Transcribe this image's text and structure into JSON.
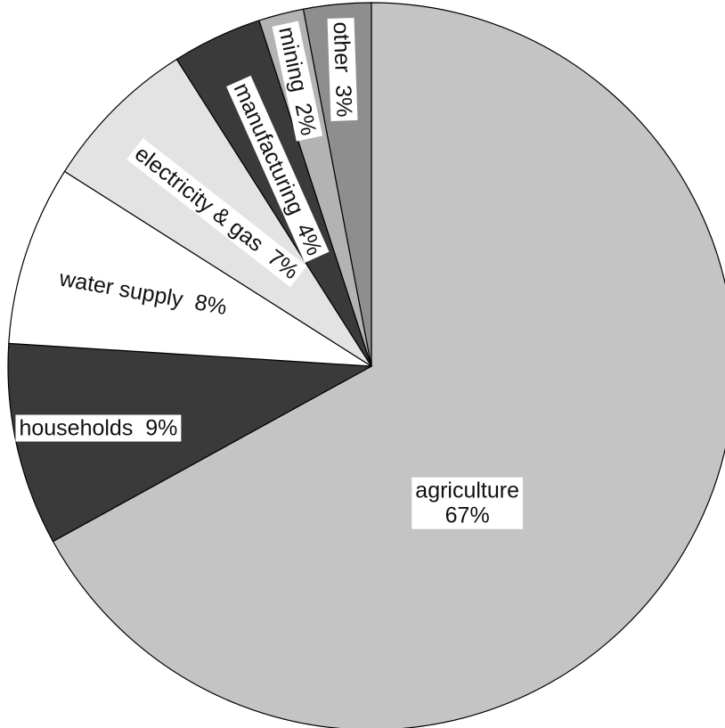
{
  "chart_data": {
    "type": "pie",
    "title": "",
    "start_angle_deg": 0,
    "direction": "clockwise",
    "slices": [
      {
        "label": "agriculture",
        "value": 67,
        "text": "67%",
        "color": "#c4c4c4"
      },
      {
        "label": "households",
        "value": 9,
        "text": "9%",
        "color": "#3a3a3a"
      },
      {
        "label": "water supply",
        "value": 8,
        "text": "8%",
        "color": "#ffffff"
      },
      {
        "label": "electricity & gas",
        "value": 7,
        "text": "7%",
        "color": "#e3e3e3"
      },
      {
        "label": "manufacturing",
        "value": 4,
        "text": "4%",
        "color": "#3a3a3a"
      },
      {
        "label": "mining",
        "value": 2,
        "text": "2%",
        "color": "#b3b3b3"
      },
      {
        "label": "other",
        "value": 3,
        "text": "3%",
        "color": "#8e8e8e"
      }
    ]
  }
}
